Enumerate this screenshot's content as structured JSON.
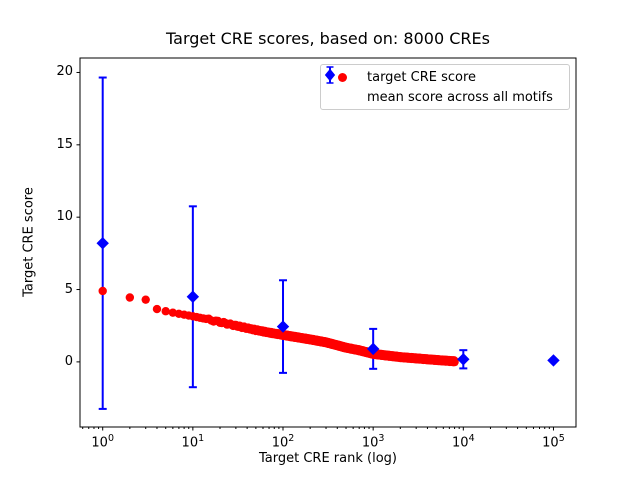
{
  "chart_data": {
    "type": "scatter",
    "title": "Target CRE scores, based on: 8000 CREs",
    "xlabel": "Target CRE rank (log)",
    "ylabel": "Target CRE score",
    "xscale": "log",
    "xlim": [
      0.56,
      177800
    ],
    "ylim": [
      -4.5,
      21.0
    ],
    "xticks": [
      1,
      10,
      100,
      1000,
      10000,
      100000
    ],
    "yticks": [
      0,
      5,
      10,
      15,
      20
    ],
    "grid": false,
    "legend_position": "upper right",
    "series": [
      {
        "name": "target CRE score",
        "marker": "circle",
        "color": "#ff0000",
        "sampled": true,
        "max_rank": 8000,
        "points": [
          [
            1,
            4.9
          ],
          [
            2,
            4.45
          ],
          [
            3,
            4.3
          ],
          [
            4,
            3.65
          ],
          [
            5,
            3.5
          ],
          [
            6,
            3.4
          ],
          [
            7,
            3.32
          ],
          [
            8,
            3.26
          ],
          [
            9,
            3.2
          ],
          [
            10,
            3.15
          ],
          [
            15,
            2.92
          ],
          [
            20,
            2.75
          ],
          [
            30,
            2.5
          ],
          [
            50,
            2.2
          ],
          [
            70,
            2.02
          ],
          [
            100,
            1.86
          ],
          [
            150,
            1.68
          ],
          [
            200,
            1.55
          ],
          [
            300,
            1.35
          ],
          [
            500,
            0.98
          ],
          [
            700,
            0.8
          ],
          [
            1000,
            0.55
          ],
          [
            1500,
            0.42
          ],
          [
            2000,
            0.33
          ],
          [
            3000,
            0.24
          ],
          [
            5000,
            0.13
          ],
          [
            8000,
            0.04
          ]
        ]
      },
      {
        "name": "mean score across all motifs",
        "marker": "diamond",
        "color": "#0000ff",
        "points": [
          [
            1,
            8.2
          ],
          [
            10,
            4.5
          ],
          [
            100,
            2.44
          ],
          [
            1000,
            0.9
          ],
          [
            10000,
            0.18
          ],
          [
            100000,
            0.1
          ]
        ],
        "yerr": [
          11.45,
          6.25,
          3.2,
          1.38,
          0.63,
          0
        ]
      }
    ]
  }
}
